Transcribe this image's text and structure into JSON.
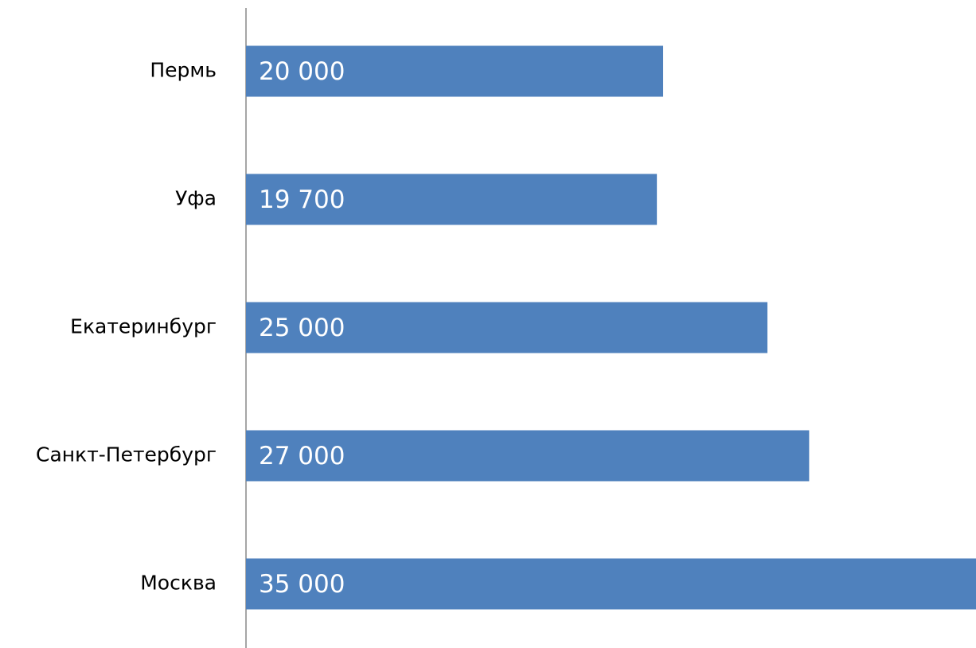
{
  "chart_data": {
    "type": "barh",
    "categories": [
      "Пермь",
      "Уфа",
      "Екатеринбург",
      "Санкт-Петербург",
      "Москва"
    ],
    "values": [
      20000,
      19700,
      25000,
      27000,
      35000
    ],
    "value_labels": [
      "20 000",
      "19 700",
      "25 000",
      "27 000",
      "35 000"
    ],
    "color": "#4f81bd"
  }
}
